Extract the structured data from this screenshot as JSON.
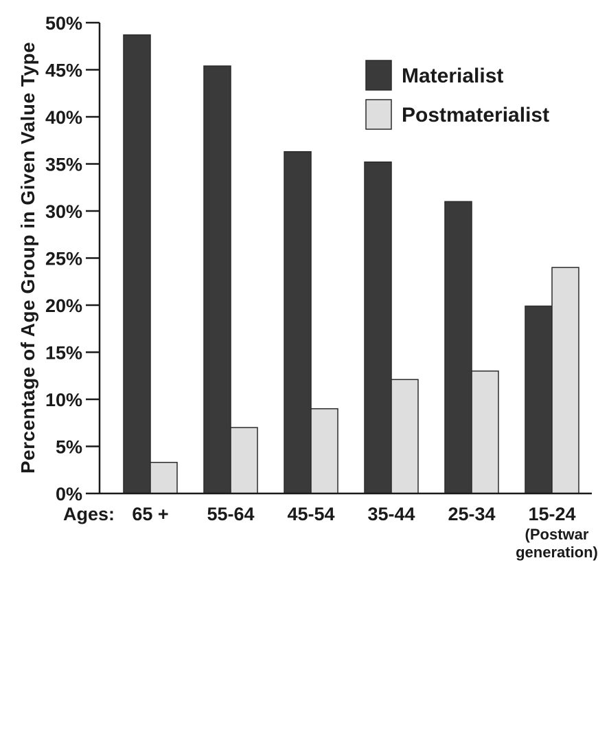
{
  "chart_data": {
    "type": "bar",
    "ylabel": "Percentage of Age Group in Given Value Type",
    "x_axis_prefix": "Ages:",
    "categories": [
      "65 +",
      "55-64",
      "45-54",
      "35-44",
      "25-34",
      "15-24"
    ],
    "category_sublabels": [
      "",
      "",
      "",
      "",
      "",
      "(Postwar generation)"
    ],
    "category_sublabel_lines": [
      [],
      [],
      [],
      [],
      [],
      [
        "(Postwar",
        "generation)"
      ]
    ],
    "series": [
      {
        "name": "Materialist",
        "color": "#3a3a3a",
        "values": [
          48.7,
          45.4,
          36.3,
          35.2,
          31.0,
          19.9
        ]
      },
      {
        "name": "Postmaterialist",
        "color": "#dedede",
        "values": [
          3.3,
          7.0,
          9.0,
          12.1,
          13.0,
          24.0
        ]
      }
    ],
    "ylim": [
      0,
      50
    ],
    "yticks": [
      0,
      5,
      10,
      15,
      20,
      25,
      30,
      35,
      40,
      45,
      50
    ],
    "ytick_labels": [
      "0%",
      "5%",
      "10%",
      "15%",
      "20%",
      "25%",
      "30%",
      "35%",
      "40%",
      "45%",
      "50%"
    ],
    "legend_position": "top-right",
    "grid": false
  }
}
